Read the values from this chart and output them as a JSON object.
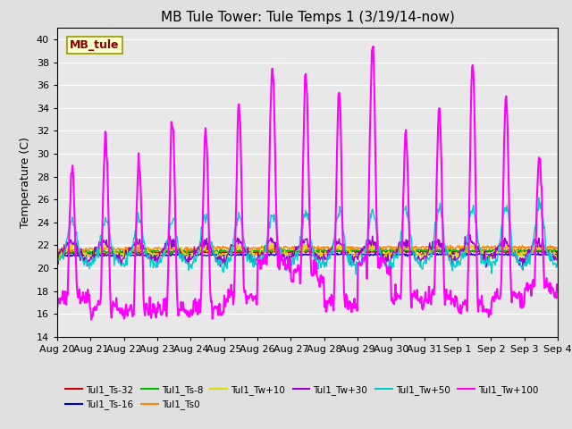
{
  "title": "MB Tule Tower: Tule Temps 1 (3/19/14-now)",
  "ylabel": "Temperature (C)",
  "ylim": [
    14,
    41
  ],
  "yticks": [
    14,
    16,
    18,
    20,
    22,
    24,
    26,
    28,
    30,
    32,
    34,
    36,
    38,
    40
  ],
  "annotation_text": "MB_tule",
  "annotation_bg": "#ffffcc",
  "annotation_border": "#999900",
  "annotation_color": "#880000",
  "series_colors": {
    "Tul1_Ts-32": "#cc0000",
    "Tul1_Ts-16": "#0000cc",
    "Tul1_Ts-8": "#00bb00",
    "Tul1_Ts0": "#ff8800",
    "Tul1_Tw+10": "#dddd00",
    "Tul1_Tw+30": "#9900cc",
    "Tul1_Tw+50": "#00cccc",
    "Tul1_Tw+100": "#ff00ff"
  },
  "legend_order": [
    "Tul1_Ts-32",
    "Tul1_Ts-16",
    "Tul1_Ts-8",
    "Tul1_Ts0",
    "Tul1_Tw+10",
    "Tul1_Tw+30",
    "Tul1_Tw+50",
    "Tul1_Tw+100"
  ],
  "x_tick_labels": [
    "Aug 20",
    "Aug 21",
    "Aug 22",
    "Aug 23",
    "Aug 24",
    "Aug 25",
    "Aug 26",
    "Aug 27",
    "Aug 28",
    "Aug 29",
    "Aug 30",
    "Aug 31",
    "Sep 1",
    "Sep 2",
    "Sep 3",
    "Sep 4"
  ],
  "x_tick_positions": [
    0,
    1,
    2,
    3,
    4,
    5,
    6,
    7,
    8,
    9,
    10,
    11,
    12,
    13,
    14,
    15
  ],
  "n_days": 15,
  "n_points": 720,
  "base_temp": 21.5,
  "fig_bg": "#e0e0e0",
  "ax_bg": "#e8e8e8"
}
